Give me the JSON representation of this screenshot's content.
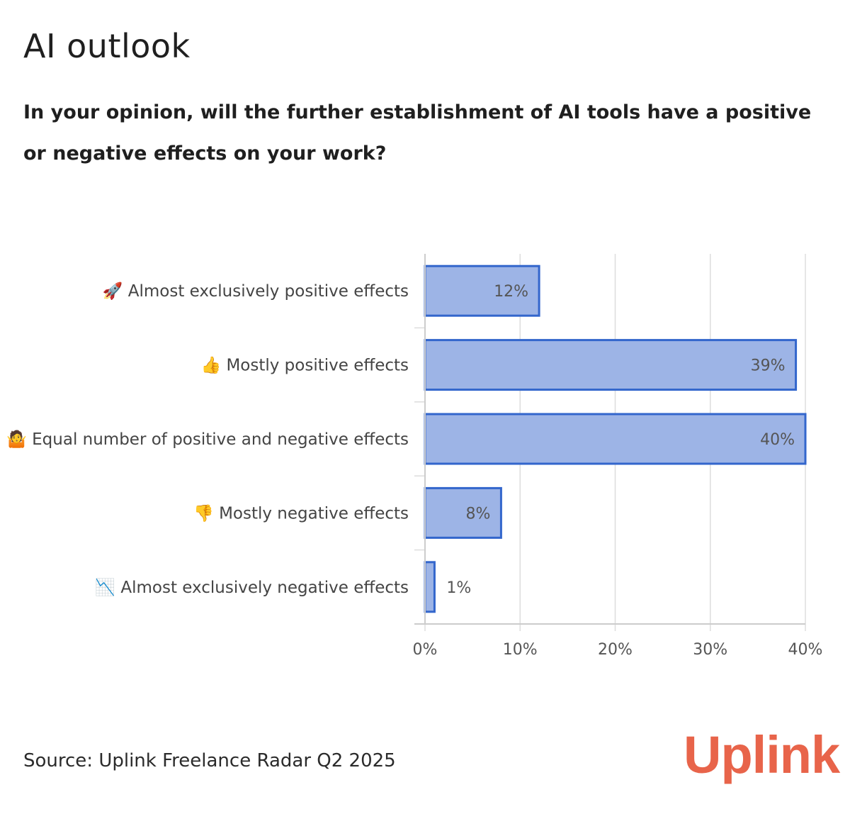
{
  "title": "AI outlook",
  "subtitle": "In your opinion, will the further establishment of AI tools have a positive or negative effects on your work?",
  "source": "Source: Uplink Freelance Radar Q2 2025",
  "logo_text": "Uplink",
  "colors": {
    "bar_fill": "#9bb3e6",
    "bar_stroke": "#3366cc",
    "grid": "#dddddd",
    "axis_text": "#555555",
    "label_text": "#444444",
    "logo": "#e8644a"
  },
  "chart_data": {
    "type": "bar",
    "orientation": "horizontal",
    "categories": [
      "🚀 Almost exclusively positive effects",
      "👍 Mostly positive effects",
      "🤷 Equal number of positive and negative effects",
      "👎 Mostly negative effects",
      "📉 Almost exclusively negative effects"
    ],
    "values": [
      12,
      39,
      40,
      8,
      1
    ],
    "data_labels": [
      "12%",
      "39%",
      "40%",
      "8%",
      "1%"
    ],
    "xlim": [
      0,
      40
    ],
    "xticks": [
      0,
      10,
      20,
      30,
      40
    ],
    "xtick_labels": [
      "0%",
      "10%",
      "20%",
      "30%",
      "40%"
    ],
    "grid": true,
    "legend": "none"
  }
}
